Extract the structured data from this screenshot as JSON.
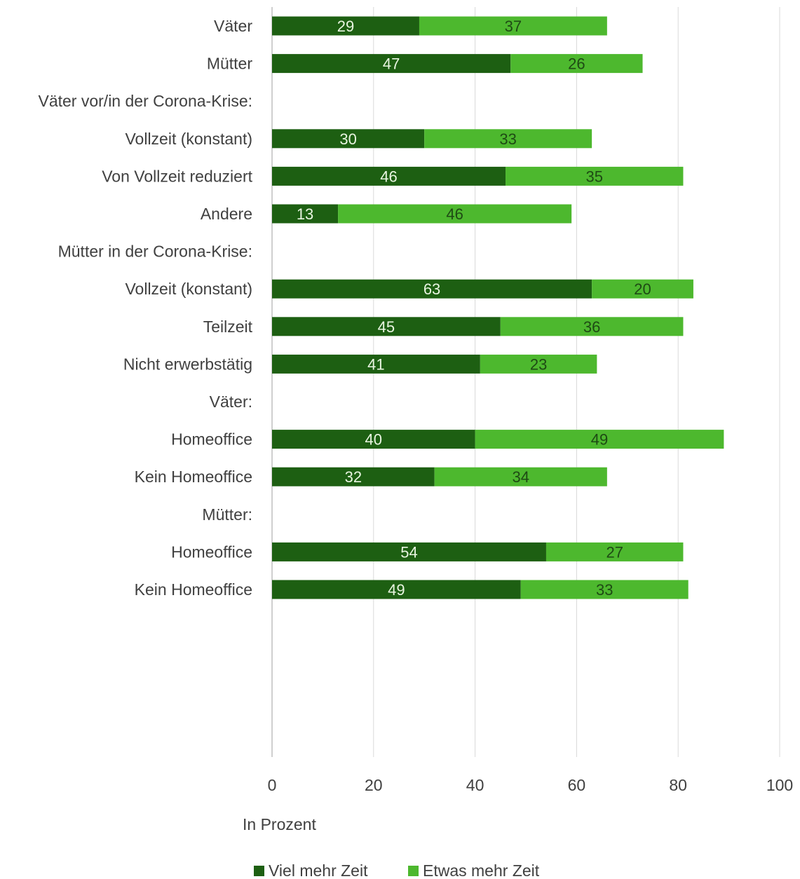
{
  "chart_data": {
    "type": "bar",
    "orientation": "horizontal",
    "stacked": true,
    "categories": [
      "Väter",
      "Mütter",
      "Väter vor/in der Corona-Krise:",
      "Vollzeit (konstant)",
      "Von Vollzeit reduziert",
      "Andere",
      "Mütter in der Corona-Krise:",
      "Vollzeit (konstant)",
      "Teilzeit",
      "Nicht erwerbstätig",
      "Väter:",
      "Homeoffice",
      "Kein Homeoffice",
      "Mütter:",
      "Homeoffice",
      "Kein Homeoffice"
    ],
    "series": [
      {
        "name": "Viel mehr Zeit",
        "color": "#1d5f12",
        "values": [
          29,
          47,
          null,
          30,
          46,
          13,
          null,
          63,
          45,
          41,
          null,
          40,
          32,
          null,
          54,
          49
        ]
      },
      {
        "name": "Etwas mehr Zeit",
        "color": "#4db82e",
        "values": [
          37,
          26,
          null,
          33,
          35,
          46,
          null,
          20,
          36,
          23,
          null,
          49,
          34,
          null,
          27,
          33
        ]
      }
    ],
    "xlabel": "In Prozent",
    "xlim": [
      0,
      100
    ],
    "xticks": [
      0,
      20,
      40,
      60,
      80,
      100
    ],
    "grid": true,
    "legend": "bottom-center"
  }
}
